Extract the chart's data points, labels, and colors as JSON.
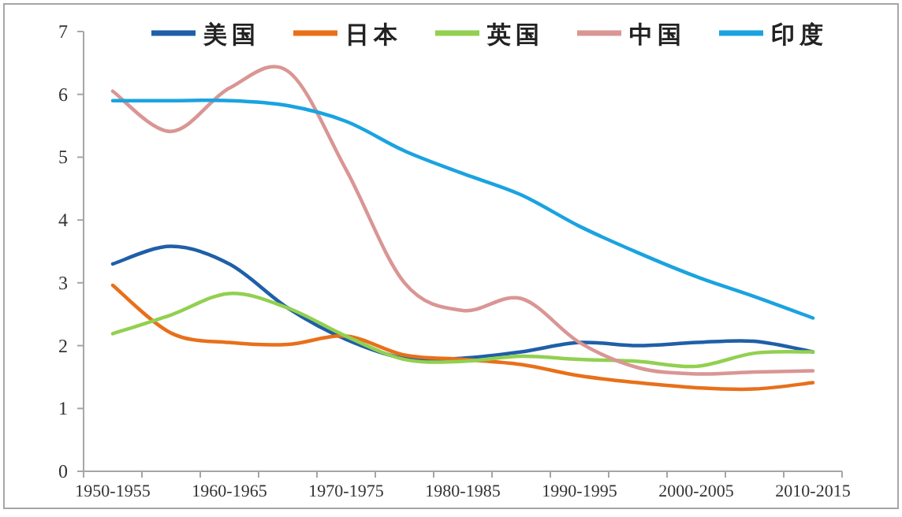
{
  "chart_data": {
    "type": "line",
    "categories": [
      "1950-1955",
      null,
      "1960-1965",
      null,
      "1970-1975",
      null,
      "1980-1985",
      null,
      "1990-1995",
      null,
      "2000-2005",
      null,
      "2010-2015"
    ],
    "series": [
      {
        "name": "美国",
        "color": "#1f5fa8",
        "values": [
          3.3,
          3.58,
          3.3,
          2.6,
          2.1,
          1.8,
          1.8,
          1.9,
          2.05,
          2.0,
          2.05,
          2.07,
          1.9
        ]
      },
      {
        "name": "日本",
        "color": "#e8701a",
        "values": [
          2.96,
          2.2,
          2.05,
          2.02,
          2.15,
          1.85,
          1.78,
          1.7,
          1.52,
          1.41,
          1.33,
          1.31,
          1.41
        ]
      },
      {
        "name": "英国",
        "color": "#92d050",
        "values": [
          2.19,
          2.49,
          2.83,
          2.6,
          2.15,
          1.78,
          1.75,
          1.83,
          1.78,
          1.75,
          1.67,
          1.88,
          1.9
        ]
      },
      {
        "name": "中国",
        "color": "#d99694",
        "values": [
          6.05,
          5.41,
          6.1,
          6.37,
          4.8,
          3.0,
          2.56,
          2.75,
          2.05,
          1.65,
          1.55,
          1.58,
          1.6
        ]
      },
      {
        "name": "印度",
        "color": "#1aa3e0",
        "values": [
          5.9,
          5.9,
          5.9,
          5.82,
          5.57,
          5.1,
          4.74,
          4.4,
          3.9,
          3.48,
          3.1,
          2.78,
          2.44
        ]
      }
    ],
    "ylim": [
      0,
      7
    ],
    "yticks": [
      0,
      1,
      2,
      3,
      4,
      5,
      6,
      7
    ],
    "grid": false,
    "legend": "top",
    "line_style": "solid",
    "marker": "none"
  }
}
